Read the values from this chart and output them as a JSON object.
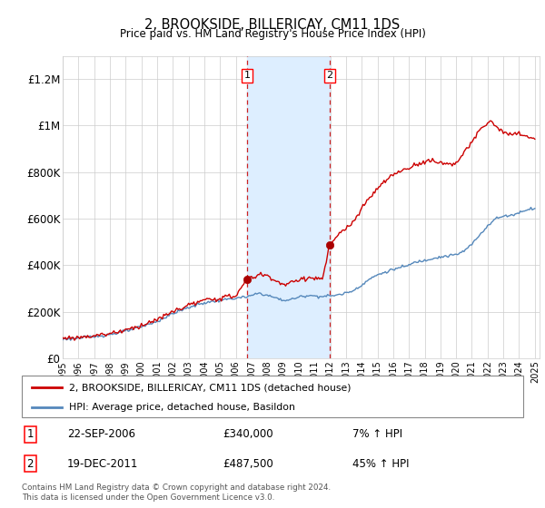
{
  "title": "2, BROOKSIDE, BILLERICAY, CM11 1DS",
  "subtitle": "Price paid vs. HM Land Registry's House Price Index (HPI)",
  "legend_line1": "2, BROOKSIDE, BILLERICAY, CM11 1DS (detached house)",
  "legend_line2": "HPI: Average price, detached house, Basildon",
  "footnote": "Contains HM Land Registry data © Crown copyright and database right 2024.\nThis data is licensed under the Open Government Licence v3.0.",
  "sale1_label": "1",
  "sale1_date": "22-SEP-2006",
  "sale1_price": "£340,000",
  "sale1_hpi": "7% ↑ HPI",
  "sale1_year": 2006.72,
  "sale1_value": 340000,
  "sale2_label": "2",
  "sale2_date": "19-DEC-2011",
  "sale2_price": "£487,500",
  "sale2_hpi": "45% ↑ HPI",
  "sale2_year": 2011.96,
  "sale2_value": 487500,
  "property_color": "#cc0000",
  "hpi_color": "#5588bb",
  "shade_color": "#ddeeff",
  "marker_color": "#aa0000",
  "ylim": [
    0,
    1300000
  ],
  "yticks": [
    0,
    200000,
    400000,
    600000,
    800000,
    1000000,
    1200000
  ],
  "ytick_labels": [
    "£0",
    "£200K",
    "£400K",
    "£600K",
    "£800K",
    "£1M",
    "£1.2M"
  ],
  "xlim_start": 1995.0,
  "xlim_end": 2025.3
}
